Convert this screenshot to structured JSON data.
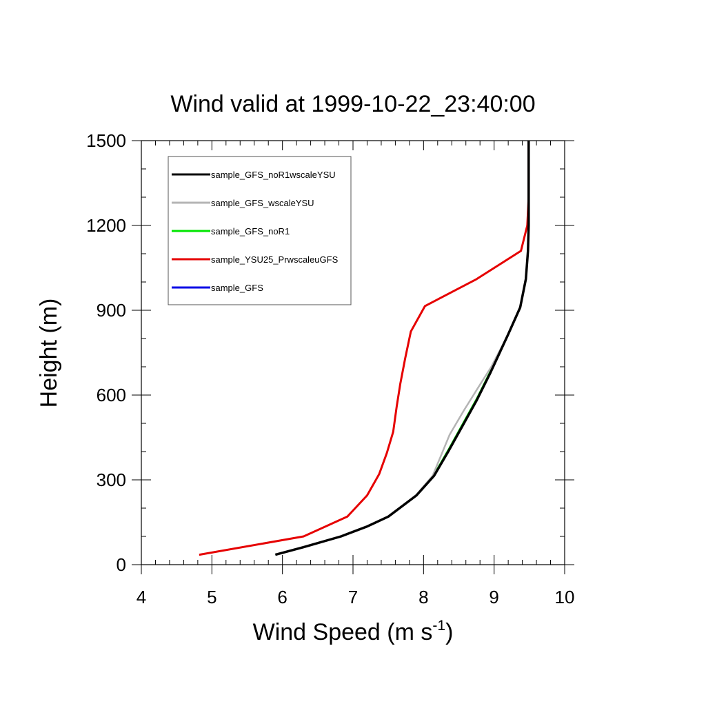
{
  "chart_data": {
    "type": "line",
    "title": "Wind valid at 1999-10-22_23:40:00",
    "xlabel": "Wind Speed (m s",
    "xlabel_sup": "-1",
    "xlabel_close": ")",
    "ylabel": "Height (m)",
    "xlim": [
      4,
      10
    ],
    "ylim": [
      0,
      1500
    ],
    "xticks": [
      4,
      5,
      6,
      7,
      8,
      9,
      10
    ],
    "yticks": [
      0,
      300,
      600,
      900,
      1200,
      1500
    ],
    "legend_position": "top-left",
    "grid": false,
    "series": [
      {
        "name": "sample_GFS_noR1wscaleYSU",
        "color": "#000000",
        "x": [
          5.9,
          6.3,
          6.83,
          7.2,
          7.5,
          7.9,
          8.15,
          8.35,
          8.55,
          8.75,
          8.95,
          9.2,
          9.37,
          9.45,
          9.48,
          9.49,
          9.49,
          9.49
        ],
        "y": [
          35,
          62,
          100,
          135,
          170,
          245,
          315,
          400,
          490,
          580,
          680,
          815,
          910,
          1010,
          1110,
          1200,
          1300,
          1500
        ]
      },
      {
        "name": "sample_GFS_wscaleYSU",
        "color": "#b4b4b4",
        "x": [
          5.9,
          6.3,
          6.82,
          7.2,
          7.5,
          7.89,
          8.13,
          8.37,
          8.57,
          8.77,
          8.96,
          9.2,
          9.37,
          9.45,
          9.48,
          9.49,
          9.49,
          9.49
        ],
        "y": [
          35,
          62,
          100,
          135,
          170,
          245,
          315,
          460,
          545,
          625,
          700,
          815,
          910,
          1010,
          1110,
          1200,
          1300,
          1500
        ]
      },
      {
        "name": "sample_GFS_noR1",
        "color": "#00e600",
        "x": [
          5.9,
          6.3,
          6.83,
          7.2,
          7.5,
          7.9,
          8.14,
          8.36,
          8.56,
          8.76,
          8.95,
          9.2,
          9.37,
          9.45,
          9.48,
          9.49,
          9.49,
          9.49
        ],
        "y": [
          35,
          62,
          100,
          135,
          170,
          245,
          315,
          410,
          500,
          590,
          685,
          815,
          910,
          1010,
          1110,
          1200,
          1300,
          1500
        ]
      },
      {
        "name": "sample_YSU25_PrwscaleuGFS",
        "color": "#e60000",
        "x": [
          4.82,
          6.3,
          6.92,
          7.2,
          7.37,
          7.48,
          7.57,
          7.62,
          7.67,
          7.74,
          7.82,
          8.02,
          8.75,
          9.38,
          9.47,
          9.49,
          9.49,
          9.49
        ],
        "y": [
          35,
          100,
          170,
          245,
          320,
          395,
          470,
          560,
          640,
          730,
          825,
          915,
          1010,
          1110,
          1200,
          1300,
          1400,
          1500
        ]
      },
      {
        "name": "sample_GFS",
        "color": "#0000e6",
        "x": [
          5.9,
          6.3,
          6.83,
          7.2,
          7.5,
          7.9,
          8.13,
          8.37,
          8.57,
          8.77,
          8.96,
          9.2,
          9.37,
          9.45,
          9.48,
          9.49,
          9.49,
          9.49
        ],
        "y": [
          35,
          62,
          100,
          135,
          170,
          245,
          315,
          460,
          545,
          625,
          700,
          815,
          910,
          1010,
          1110,
          1200,
          1300,
          1500
        ]
      }
    ]
  }
}
